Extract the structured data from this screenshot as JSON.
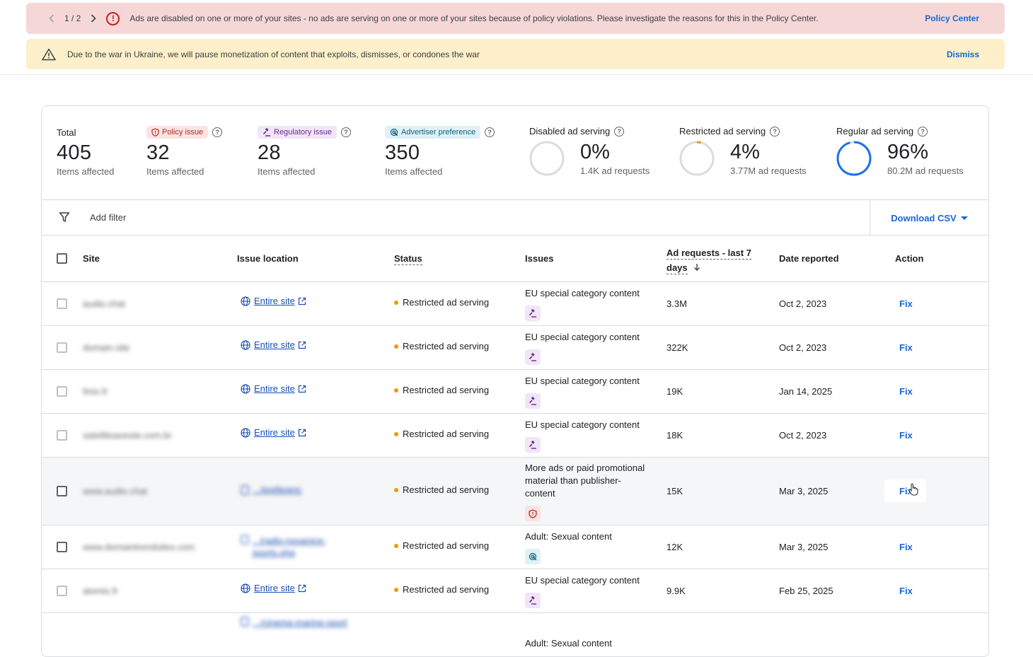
{
  "banners": {
    "policy": {
      "pager": "1 / 2",
      "message": "Ads are disabled on one or more of your sites - no ads are serving on one or more of your sites because of policy violations. Please investigate the reasons for this in the Policy Center.",
      "action": "Policy Center"
    },
    "ukraine": {
      "message": "Due to the war in Ukraine, we will pause monetization of content that exploits, dismisses, or condones the war",
      "action": "Dismiss"
    }
  },
  "summary": {
    "total": {
      "label": "Total",
      "value": "405",
      "sub": "Items affected"
    },
    "policy": {
      "chip": "Policy issue",
      "value": "32",
      "sub": "Items affected"
    },
    "regulatory": {
      "chip": "Regulatory issue",
      "value": "28",
      "sub": "Items affected"
    },
    "advertiser": {
      "chip": "Advertiser preference",
      "value": "350",
      "sub": "Items affected"
    },
    "disabled": {
      "label": "Disabled ad serving",
      "value": "0%",
      "sub": "1.4K ad requests",
      "fraction": 0.0
    },
    "restricted": {
      "label": "Restricted ad serving",
      "value": "4%",
      "sub": "3.77M ad requests",
      "fraction": 0.04
    },
    "regular": {
      "label": "Regular ad serving",
      "value": "96%",
      "sub": "80.2M ad requests",
      "fraction": 0.96
    }
  },
  "filter": {
    "add_filter": "Add filter",
    "download": "Download CSV"
  },
  "table": {
    "headers": {
      "site": "Site",
      "location": "Issue location",
      "status": "Status",
      "issues": "Issues",
      "requests_line1": "Ad requests - last 7",
      "requests_line2": "days",
      "date": "Date reported",
      "action": "Action"
    },
    "rows": [
      {
        "site": "audio.chat",
        "location": "Entire site",
        "status": "Restricted ad serving",
        "issue": "EU special category content",
        "requests": "3.3M",
        "date": "Oct 2, 2023",
        "action": "Fix"
      },
      {
        "site": "domain.site",
        "location": "Entire site",
        "status": "Restricted ad serving",
        "issue": "EU special category content",
        "requests": "322K",
        "date": "Oct 2, 2023",
        "action": "Fix"
      },
      {
        "site": "fmix.fr",
        "location": "Entire site",
        "status": "Restricted ad serving",
        "issue": "EU special category content",
        "requests": "19K",
        "date": "Jan 14, 2025",
        "action": "Fix"
      },
      {
        "site": "satellitoaveste.com.br",
        "location": "Entire site",
        "status": "Restricted ad serving",
        "issue": "EU special category content",
        "requests": "18K",
        "date": "Oct 2, 2023",
        "action": "Fix"
      },
      {
        "site": "www.audio.chat",
        "location": ".../preferenc",
        "status": "Restricted ad serving",
        "issue": "More ads or paid promotional material than publisher-content",
        "requests": "15K",
        "date": "Mar 3, 2025",
        "action": "Fix"
      },
      {
        "site": "www.domaintrendsites.com",
        "location": ".../radio-novanice-sports.php",
        "status": "Restricted ad serving",
        "issue": "Adult: Sexual content",
        "requests": "12K",
        "date": "Mar 3, 2025",
        "action": "Fix"
      },
      {
        "site": "atomix.fr",
        "location": "Entire site",
        "status": "Restricted ad serving",
        "issue": "EU special category content",
        "requests": "9.9K",
        "date": "Feb 25, 2025",
        "action": "Fix"
      },
      {
        "site": "",
        "location": ".../cinema-marine-sport",
        "status": "",
        "issue": "Adult: Sexual content",
        "requests": "",
        "date": "",
        "action": ""
      }
    ]
  },
  "colors": {
    "accent": "#1967d2",
    "restricted_dot": "#f29900",
    "ring_regular": "#1a73e8",
    "ring_restricted": "#f29900"
  }
}
